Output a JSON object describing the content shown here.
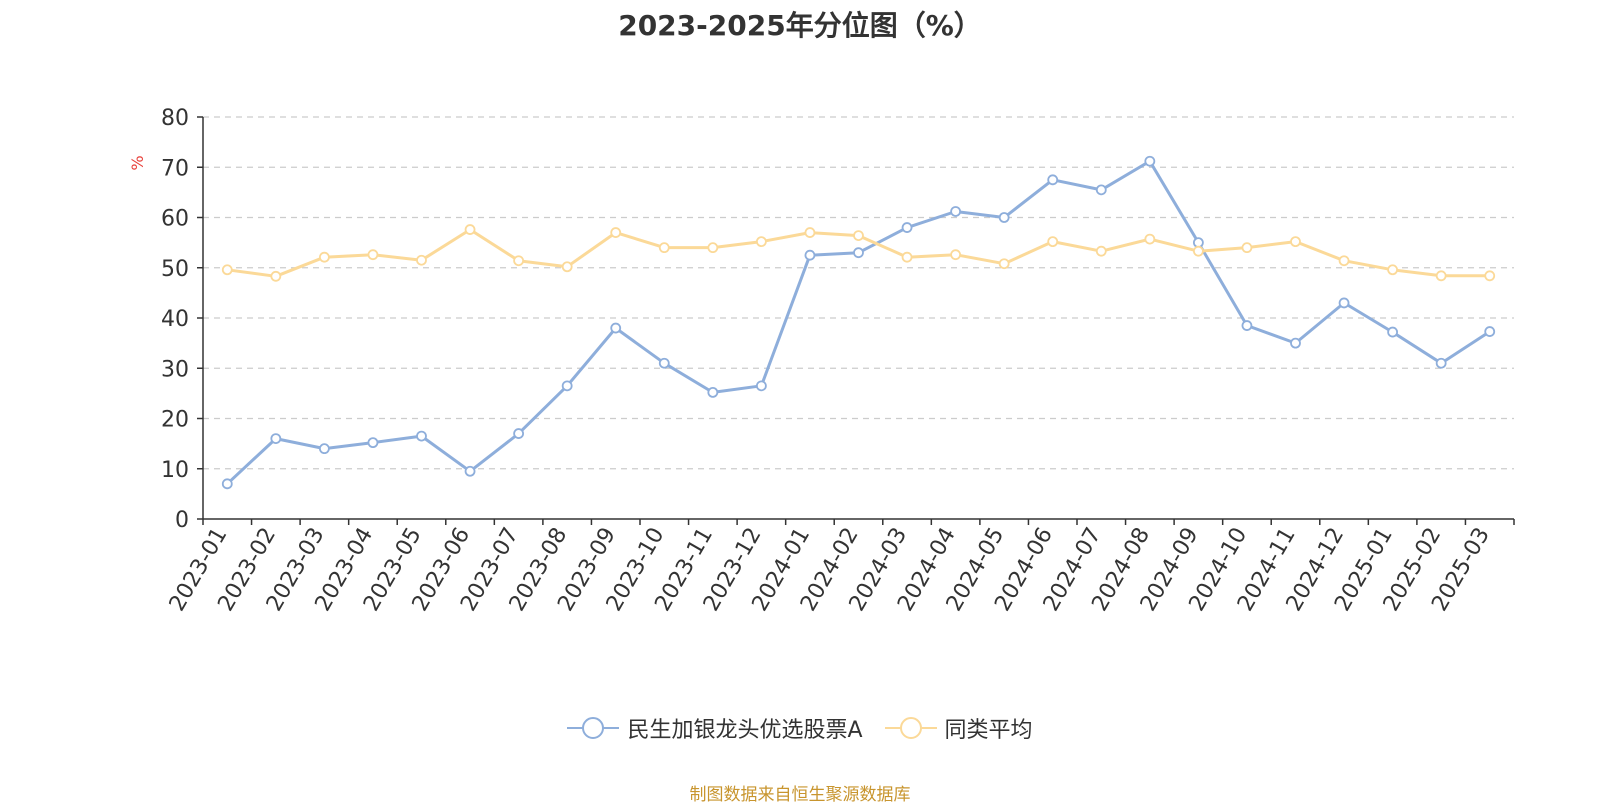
{
  "chart_data": {
    "type": "line",
    "title": "2023-2025年分位图（%）",
    "ylabel": "%",
    "ylim": [
      0,
      80
    ],
    "yticks": [
      0,
      10,
      20,
      30,
      40,
      50,
      60,
      70,
      80
    ],
    "grid": true,
    "legend_position": "bottom-center",
    "categories": [
      "2023-01",
      "2023-02",
      "2023-03",
      "2023-04",
      "2023-05",
      "2023-06",
      "2023-07",
      "2023-08",
      "2023-09",
      "2023-10",
      "2023-11",
      "2023-12",
      "2024-01",
      "2024-02",
      "2024-03",
      "2024-04",
      "2024-05",
      "2024-06",
      "2024-07",
      "2024-08",
      "2024-09",
      "2024-10",
      "2024-11",
      "2024-12",
      "2025-01",
      "2025-02",
      "2025-03"
    ],
    "series": [
      {
        "name": "民生加银龙头优选股票A",
        "color": "#8eaedb",
        "values": [
          7,
          16,
          14,
          15.2,
          16.5,
          9.5,
          17,
          26.5,
          38,
          31,
          25.2,
          26.5,
          52.5,
          53,
          58,
          61.2,
          60,
          67.5,
          65.5,
          71.2,
          55,
          38.5,
          35,
          43,
          37.2,
          31,
          37.3
        ]
      },
      {
        "name": "同类平均",
        "color": "#fbd998",
        "values": [
          49.6,
          48.3,
          52.1,
          52.6,
          51.5,
          57.6,
          51.4,
          50.2,
          57,
          54,
          54,
          55.2,
          57,
          56.4,
          52.1,
          52.6,
          50.8,
          55.2,
          53.3,
          55.7,
          53.3,
          54,
          55.2,
          51.4,
          49.6,
          48.4,
          48.4
        ]
      }
    ]
  },
  "source_note": "制图数据来自恒生聚源数据库",
  "colors": {
    "axis": "#333333",
    "grid": "#cccccc",
    "ylabel": "#e8413b",
    "source": "#c8952e"
  }
}
